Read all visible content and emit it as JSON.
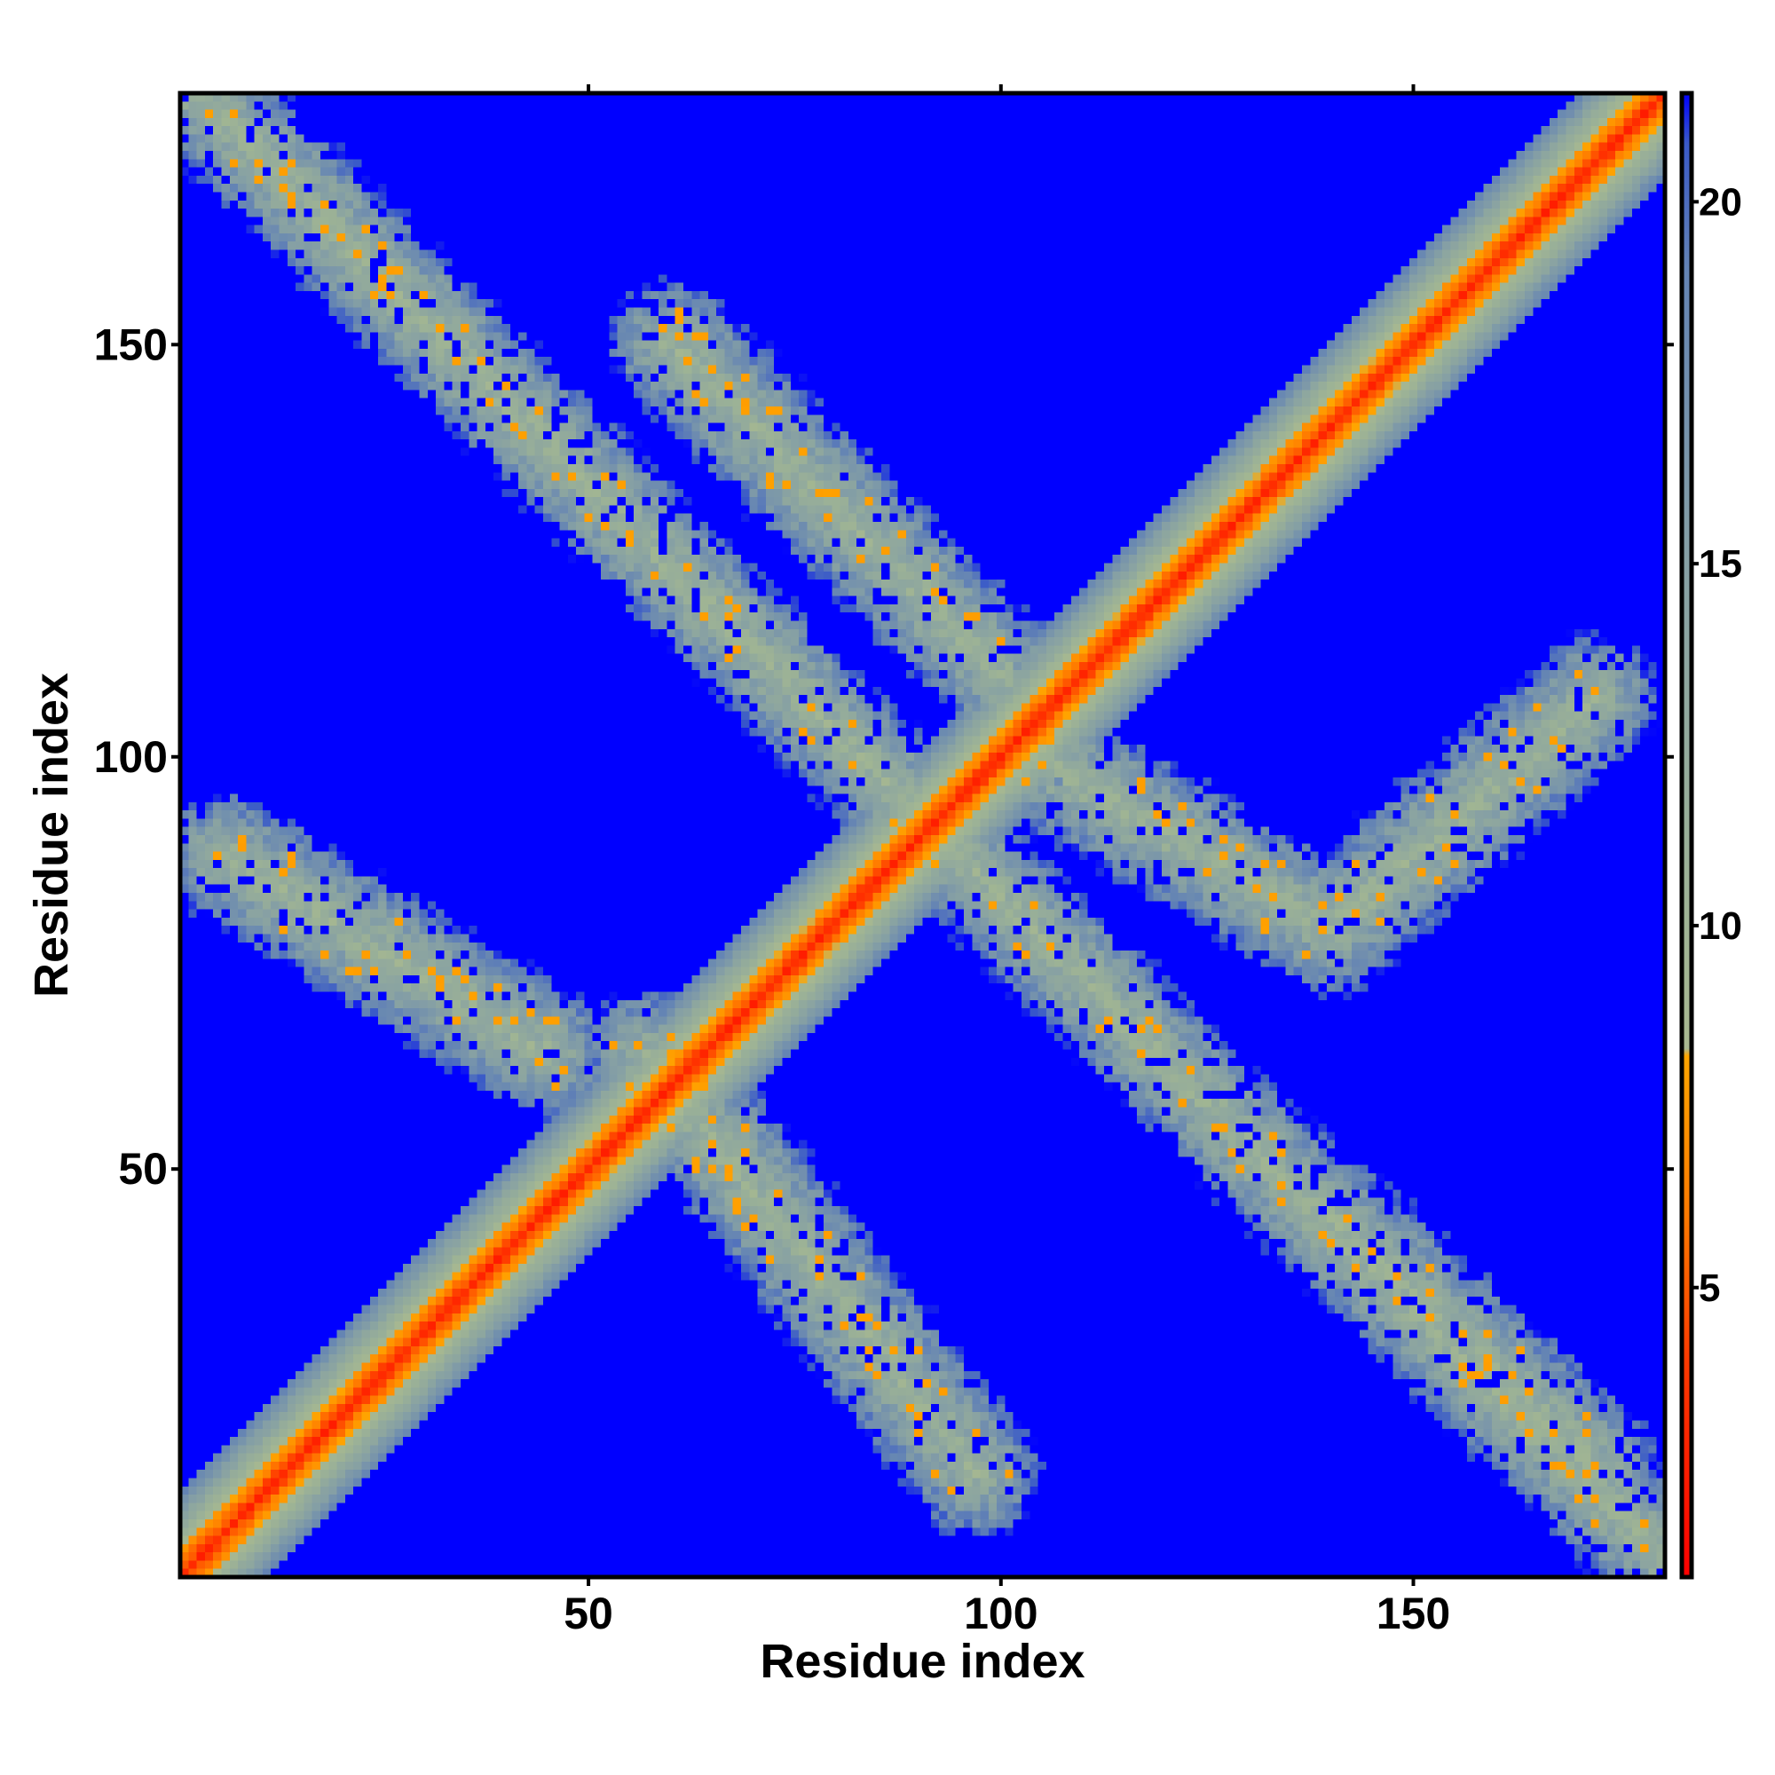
{
  "chart_data": {
    "type": "heatmap",
    "title": "",
    "xlabel": "Residue index",
    "ylabel": "Residue index",
    "xlim": [
      0.5,
      180.5
    ],
    "ylim": [
      0.5,
      180.5
    ],
    "n_residues": 180,
    "x_ticks": [
      {
        "value": 50,
        "label": "50"
      },
      {
        "value": 100,
        "label": "100"
      },
      {
        "value": 150,
        "label": "150"
      }
    ],
    "y_ticks": [
      {
        "value": 50,
        "label": "50"
      },
      {
        "value": 100,
        "label": "100"
      },
      {
        "value": 150,
        "label": "150"
      }
    ],
    "colorbar": {
      "min": 1,
      "max": 21.5,
      "ticks": [
        {
          "value": 5,
          "label": "5"
        },
        {
          "value": 10,
          "label": "10"
        },
        {
          "value": 15,
          "label": "15"
        },
        {
          "value": 20,
          "label": "20"
        }
      ],
      "stops": [
        {
          "value": 1,
          "color": "#ff0000"
        },
        {
          "value": 4,
          "color": "#ff3a00"
        },
        {
          "value": 6,
          "color": "#ff7a00"
        },
        {
          "value": 8.2,
          "color": "#ffa500"
        },
        {
          "value": 8.3,
          "color": "#a8b890"
        },
        {
          "value": 10,
          "color": "#9fb494"
        },
        {
          "value": 15,
          "color": "#86a0a4"
        },
        {
          "value": 19,
          "color": "#6484b4"
        },
        {
          "value": 20.8,
          "color": "#3a5ac8"
        },
        {
          "value": 21.5,
          "color": "#0000ff"
        }
      ]
    },
    "background_value": 21.5,
    "contact_bands": [
      {
        "start": [
          3,
          180
        ],
        "end": [
          180,
          3
        ],
        "half_width": 5,
        "core_distance": 11,
        "note": "anti-diagonal beta contacts"
      },
      {
        "start": [
          6,
          88
        ],
        "end": [
          45,
          64
        ],
        "half_width": 6,
        "core_distance": 11
      },
      {
        "start": [
          57,
          64
        ],
        "end": [
          97,
          13
        ],
        "half_width": 6,
        "core_distance": 11
      },
      {
        "start": [
          60,
          150
        ],
        "end": [
          100,
          110
        ],
        "half_width": 6,
        "core_distance": 11
      },
      {
        "start": [
          104,
          100
        ],
        "end": [
          140,
          79
        ],
        "half_width": 6,
        "core_distance": 11
      },
      {
        "start": [
          140,
          79
        ],
        "end": [
          172,
          107
        ],
        "half_width": 6,
        "core_distance": 11
      },
      {
        "start": [
          140,
          44
        ],
        "end": [
          172,
          14
        ],
        "half_width": 6,
        "core_distance": 11
      }
    ],
    "diagonal": {
      "half_width": 10,
      "note": "distance grows with sequence separation; red within ~2 residues"
    },
    "grid": false,
    "legend": "colorbar-right"
  }
}
